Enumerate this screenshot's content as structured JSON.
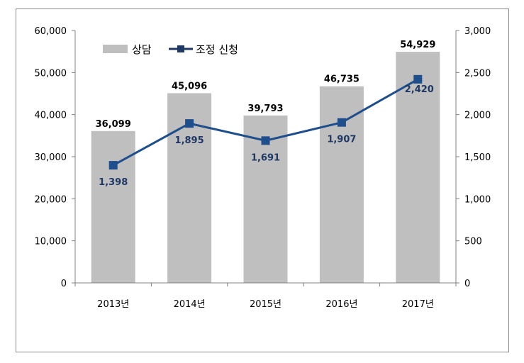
{
  "chart_data": {
    "type": "bar",
    "categories": [
      "2013년",
      "2014년",
      "2015년",
      "2016년",
      "2017년"
    ],
    "series": [
      {
        "name": "상담",
        "type": "bar",
        "axis": "left",
        "values": [
          36099,
          45096,
          39793,
          46735,
          54929
        ],
        "labels": [
          "36,099",
          "45,096",
          "39,793",
          "46,735",
          "54,929"
        ],
        "color": "#bfbfbf"
      },
      {
        "name": "조정 신청",
        "type": "line",
        "axis": "right",
        "values": [
          1398,
          1895,
          1691,
          1907,
          2420
        ],
        "labels": [
          "1,398",
          "1,895",
          "1,691",
          "1,907",
          "2,420"
        ],
        "color": "#1f4e8c"
      }
    ],
    "y_left": {
      "range": [
        0,
        60000
      ],
      "ticks": [
        0,
        10000,
        20000,
        30000,
        40000,
        50000,
        60000
      ],
      "tick_labels": [
        "0",
        "10,000",
        "20,000",
        "30,000",
        "40,000",
        "50,000",
        "60,000"
      ]
    },
    "y_right": {
      "range": [
        0,
        3000
      ],
      "ticks": [
        0,
        500,
        1000,
        1500,
        2000,
        2500,
        3000
      ],
      "tick_labels": [
        "0",
        "500",
        "1,000",
        "1,500",
        "2,000",
        "2,500",
        "3,000"
      ]
    },
    "grid": false,
    "legend": "top-left"
  }
}
